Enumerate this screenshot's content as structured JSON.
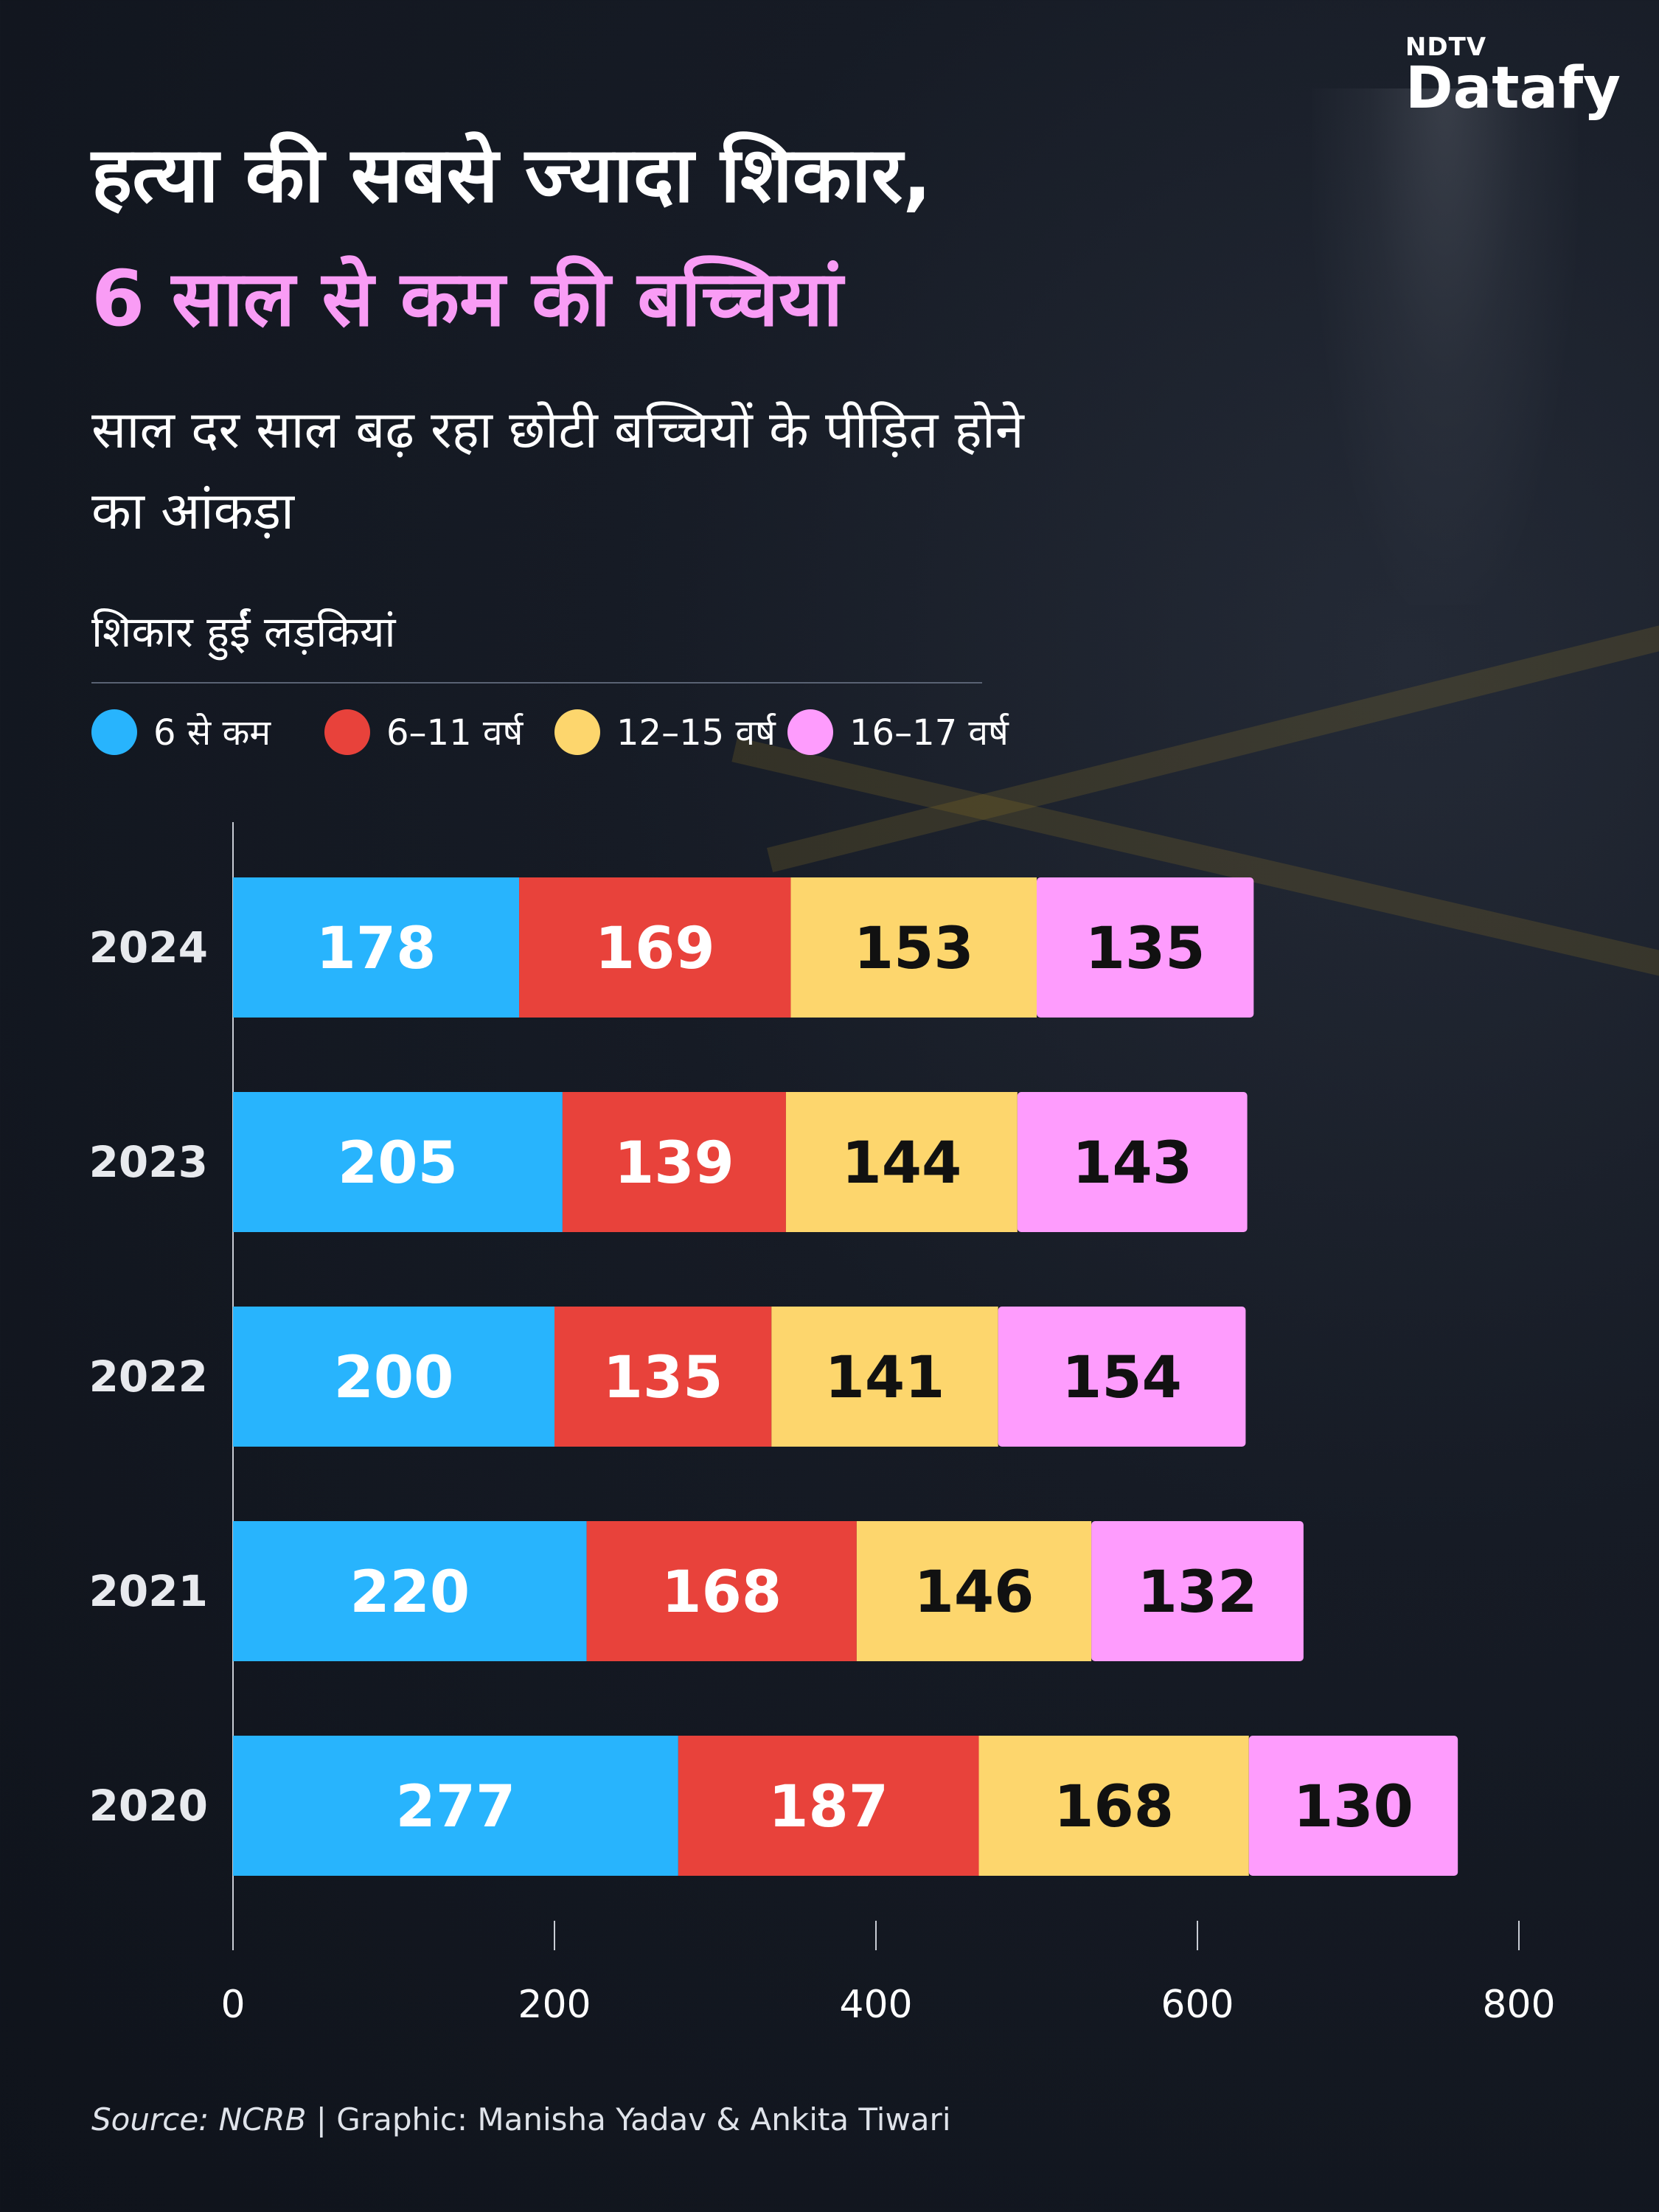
{
  "brand": {
    "top": "NDTV",
    "main": "Datafy"
  },
  "title_line1": "हत्या की सबसे ज्यादा शिकार,",
  "title_line2": "6 साल से कम की बच्चियां",
  "subtitle": "साल दर साल बढ़ रहा छोटी बच्चियों के पीड़ित होने का आंकड़ा",
  "legend_title": "शिकार हुईं लड़कियां",
  "colors": {
    "accent_pink": "#f99cf5",
    "under6": "#28b4fd",
    "age6_11": "#e8423b",
    "age12_15": "#fdd66d",
    "age16_17": "#fe9cfd"
  },
  "chart_data": {
    "type": "bar",
    "orientation": "horizontal",
    "stacked": true,
    "categories": [
      "2024",
      "2023",
      "2022",
      "2021",
      "2020"
    ],
    "series": [
      {
        "name": "6 से कम",
        "color": "#28b4fd",
        "label_color": "#ffffff",
        "values": [
          178,
          205,
          200,
          220,
          277
        ]
      },
      {
        "name": "6–11 वर्ष",
        "color": "#e8423b",
        "label_color": "#ffffff",
        "values": [
          169,
          139,
          135,
          168,
          187
        ]
      },
      {
        "name": "12–15 वर्ष",
        "color": "#fdd66d",
        "label_color": "#111111",
        "values": [
          153,
          144,
          141,
          146,
          168
        ]
      },
      {
        "name": "16–17 वर्ष",
        "color": "#fe9cfd",
        "label_color": "#111111",
        "values": [
          135,
          143,
          154,
          132,
          130
        ]
      }
    ],
    "xlim": [
      0,
      800
    ],
    "xticks": [
      0,
      200,
      400,
      600,
      800
    ],
    "grid": false,
    "legend_position": "top"
  },
  "source": {
    "label": "Source: NCRB",
    "credit": " | Graphic: Manisha Yadav & Ankita Tiwari"
  }
}
